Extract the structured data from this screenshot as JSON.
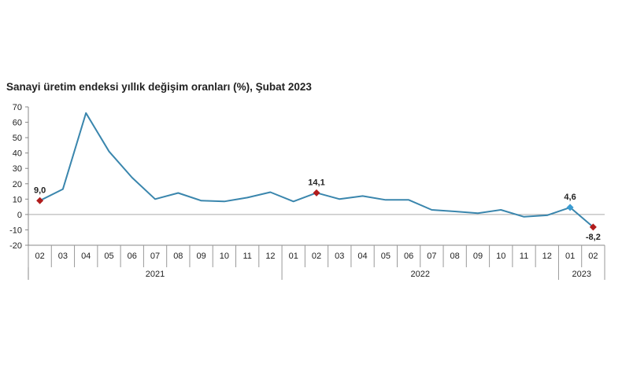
{
  "chart_data": {
    "type": "line",
    "title": "Sanayi üretim endeksi yıllık değişim oranları (%), Şubat 2023",
    "ylim": [
      -20,
      70
    ],
    "yticks": [
      -20,
      -10,
      0,
      10,
      20,
      30,
      40,
      50,
      60,
      70
    ],
    "ytick_labels": [
      "-20",
      "-10",
      "0",
      "10",
      "20",
      "30",
      "40",
      "50",
      "60",
      "70"
    ],
    "grid": false,
    "categories": [
      "02",
      "03",
      "04",
      "05",
      "06",
      "07",
      "08",
      "09",
      "10",
      "11",
      "12",
      "01",
      "02",
      "03",
      "04",
      "05",
      "06",
      "07",
      "08",
      "09",
      "10",
      "11",
      "12",
      "01",
      "02"
    ],
    "year_groups": [
      {
        "label": "2021",
        "count": 11
      },
      {
        "label": "2022",
        "count": 12
      },
      {
        "label": "2023",
        "count": 2
      }
    ],
    "series": [
      {
        "values": [
          9.0,
          16.5,
          66.0,
          41.0,
          24.0,
          10.0,
          14.0,
          9.0,
          8.5,
          11.0,
          14.5,
          8.5,
          14.1,
          10.0,
          12.0,
          9.5,
          9.5,
          3.0,
          2.0,
          0.8,
          3.0,
          -1.5,
          -0.5,
          4.6,
          -8.2
        ],
        "color": "#3a86ad"
      }
    ],
    "markers": [
      {
        "index": 0,
        "label": "9,0",
        "color": "#b11c1c"
      },
      {
        "index": 12,
        "label": "14,1",
        "color": "#b11c1c"
      },
      {
        "index": 23,
        "label": "4,6",
        "color": "#3a9bd1"
      },
      {
        "index": 24,
        "label": "-8,2",
        "color": "#b11c1c"
      }
    ]
  }
}
